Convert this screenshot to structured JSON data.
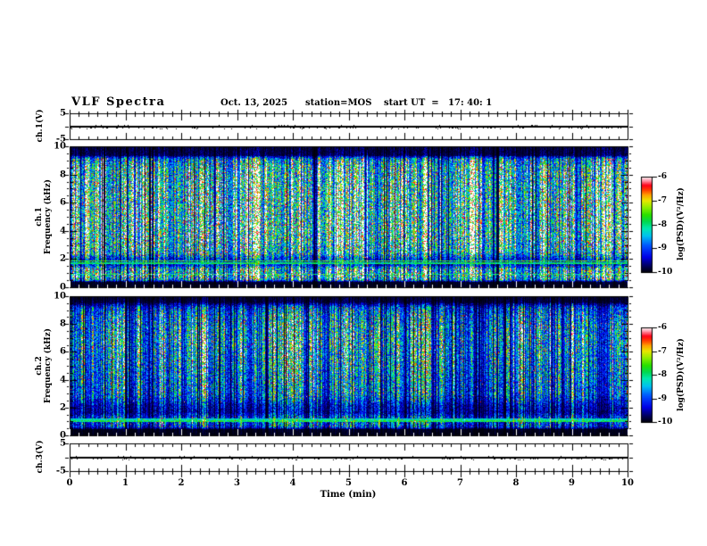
{
  "header": {
    "title": "VLF Spectra",
    "date": "Oct. 13, 2025",
    "station": "station=MOS",
    "start_ut": "start UT  =   17: 40: 1"
  },
  "axes": {
    "x": {
      "label": "Time (min)",
      "range": [
        0,
        10
      ],
      "ticks": [
        "0",
        "1",
        "2",
        "3",
        "4",
        "5",
        "6",
        "7",
        "8",
        "9",
        "10"
      ]
    },
    "strip1": {
      "label": "ch.1(V)",
      "range": [
        -5,
        5
      ],
      "tick_top": "5",
      "tick_bottom": "-5"
    },
    "spec1": {
      "label_line1": "ch.1",
      "label_line2": "Frequency (kHz)",
      "range": [
        0,
        10
      ],
      "ticks": [
        "0",
        "2",
        "4",
        "6",
        "8",
        "10"
      ]
    },
    "spec2": {
      "label_line1": "ch.2",
      "label_line2": "Frequency (kHz)",
      "range": [
        0,
        10
      ],
      "ticks": [
        "0",
        "2",
        "4",
        "6",
        "8",
        "10"
      ]
    },
    "strip2": {
      "label": "ch.3(V)",
      "range": [
        -5,
        5
      ],
      "tick_top": "5",
      "tick_bottom": "-5"
    }
  },
  "colorbars": {
    "ticks": [
      "-6",
      "-7",
      "-8",
      "-9",
      "-10"
    ],
    "label": "log(PSD)(V²/Hz)",
    "range": [
      -10,
      -6
    ],
    "colormap": [
      [
        0.0,
        "#000008"
      ],
      [
        0.07,
        "#000060"
      ],
      [
        0.16,
        "#0000e8"
      ],
      [
        0.28,
        "#0055ff"
      ],
      [
        0.38,
        "#00c0f0"
      ],
      [
        0.46,
        "#00e8b0"
      ],
      [
        0.53,
        "#00d850"
      ],
      [
        0.6,
        "#28e000"
      ],
      [
        0.68,
        "#90ee00"
      ],
      [
        0.75,
        "#e8e800"
      ],
      [
        0.81,
        "#ffa000"
      ],
      [
        0.86,
        "#ff4000"
      ],
      [
        0.91,
        "#ff0018"
      ],
      [
        0.96,
        "#ff95a8"
      ],
      [
        1.0,
        "#ffffff"
      ]
    ]
  },
  "colors": {
    "background": "#ffffff",
    "frame": "#000000",
    "text": "#000000",
    "trace": "#000000",
    "bottom_ticks_over_black": "#ffffff"
  },
  "chart_data": [
    {
      "type": "line",
      "name": "ch.1 voltage strip",
      "ylabel": "ch.1(V)",
      "ylim": [
        -5,
        5
      ],
      "xlim": [
        0,
        10
      ],
      "series": [
        {
          "name": "ch.1(V)",
          "description": "flat trace at 0 V with small noise",
          "mean_value": 0
        }
      ]
    },
    {
      "type": "heatmap",
      "name": "ch.1 spectrogram",
      "xlabel": "Time (min)",
      "ylabel": "ch.1 Frequency (kHz)",
      "xlim": [
        0,
        10
      ],
      "flim": [
        0,
        10
      ],
      "zlim": [
        -10,
        -6
      ],
      "zlabel": "log(PSD)(V²/Hz)",
      "seed": 11,
      "gain": 1.34,
      "hot_prob": 0.03,
      "profile": [
        [
          0,
          0.02
        ],
        [
          0.38,
          0.03
        ],
        [
          0.55,
          0.52
        ],
        [
          0.8,
          0.62
        ],
        [
          1.3,
          0.58
        ],
        [
          1.55,
          0.26
        ],
        [
          2.05,
          0.3
        ],
        [
          2.45,
          0.58
        ],
        [
          3.5,
          0.66
        ],
        [
          5.5,
          0.66
        ],
        [
          7.5,
          0.64
        ],
        [
          8.6,
          0.58
        ],
        [
          9.1,
          0.42
        ],
        [
          9.35,
          0.07
        ],
        [
          10,
          0.05
        ]
      ],
      "tone_lines": [
        {
          "f": 1.88,
          "strength": 0.58
        },
        {
          "f": 1.72,
          "strength": 0.5
        },
        {
          "f": 0.92,
          "strength": 0.46
        }
      ]
    },
    {
      "type": "heatmap",
      "name": "ch.2 spectrogram",
      "xlabel": "Time (min)",
      "ylabel": "ch.2 Frequency (kHz)",
      "xlim": [
        0,
        10
      ],
      "flim": [
        0,
        10
      ],
      "zlim": [
        -10,
        -6
      ],
      "zlabel": "log(PSD)(V²/Hz)",
      "seed": 23,
      "gain": 1.02,
      "hot_prob": 0.016,
      "profile": [
        [
          0,
          0.02
        ],
        [
          0.42,
          0.03
        ],
        [
          0.62,
          0.36
        ],
        [
          0.95,
          0.42
        ],
        [
          1.3,
          0.36
        ],
        [
          1.65,
          0.2
        ],
        [
          2.15,
          0.24
        ],
        [
          2.9,
          0.46
        ],
        [
          4.0,
          0.5
        ],
        [
          5.5,
          0.57
        ],
        [
          6.8,
          0.62
        ],
        [
          7.8,
          0.58
        ],
        [
          8.6,
          0.52
        ],
        [
          9.2,
          0.36
        ],
        [
          9.55,
          0.07
        ],
        [
          10,
          0.04
        ]
      ],
      "tone_lines": [
        {
          "f": 1.02,
          "strength": 0.52
        },
        {
          "f": 1.14,
          "strength": 0.42
        }
      ]
    },
    {
      "type": "line",
      "name": "ch.3 voltage strip",
      "ylabel": "ch.3(V)",
      "ylim": [
        -5,
        5
      ],
      "xlim": [
        0,
        10
      ],
      "series": [
        {
          "name": "ch.3(V)",
          "description": "flat trace at 0 V with small noise",
          "mean_value": 0
        }
      ]
    }
  ]
}
